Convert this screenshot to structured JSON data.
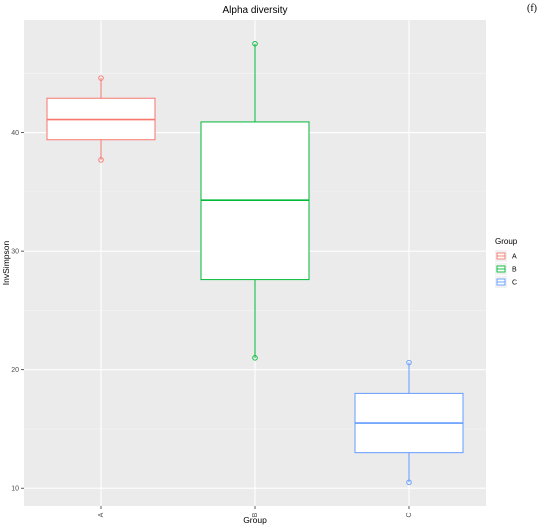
{
  "panel_tag": "(f)",
  "chart_data": {
    "type": "boxplot",
    "title": "Alpha diversity",
    "xlabel": "Group",
    "ylabel": "InvSimpson",
    "categories": [
      "A",
      "B",
      "C"
    ],
    "ylim": [
      8.5,
      49.5
    ],
    "yticks": [
      10,
      20,
      30,
      40
    ],
    "grid": true,
    "legend": {
      "title": "Group",
      "position": "right",
      "entries": [
        "A",
        "B",
        "C"
      ]
    },
    "colors": {
      "A": "#F8766D",
      "B": "#00BA38",
      "C": "#619CFF"
    },
    "boxes": [
      {
        "group": "A",
        "min": 37.7,
        "q1": 39.4,
        "median": 41.1,
        "q3": 42.9,
        "max": 44.6,
        "points": [
          44.6,
          37.7
        ]
      },
      {
        "group": "B",
        "min": 21.0,
        "q1": 27.6,
        "median": 34.3,
        "q3": 40.9,
        "max": 47.5,
        "points": [
          47.5,
          21.0
        ]
      },
      {
        "group": "C",
        "min": 10.5,
        "q1": 13.0,
        "median": 15.5,
        "q3": 18.0,
        "max": 20.6,
        "points": [
          20.6,
          10.5
        ]
      }
    ]
  }
}
